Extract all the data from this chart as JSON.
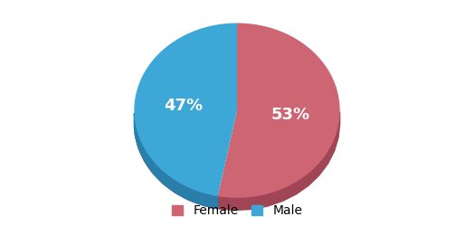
{
  "labels": [
    "Female",
    "Male"
  ],
  "values": [
    53,
    47
  ],
  "colors": [
    "#cd6572",
    "#3da8d8"
  ],
  "dark_colors": [
    "#a04555",
    "#2a7faa"
  ],
  "pct_labels": [
    "53%",
    "47%"
  ],
  "pct_colors": [
    "white",
    "white"
  ],
  "pct_fontsize": 13,
  "legend_fontsize": 10,
  "background_color": "#ffffff",
  "startangle": 90,
  "depth": 0.12,
  "legend_marker_size": 10
}
